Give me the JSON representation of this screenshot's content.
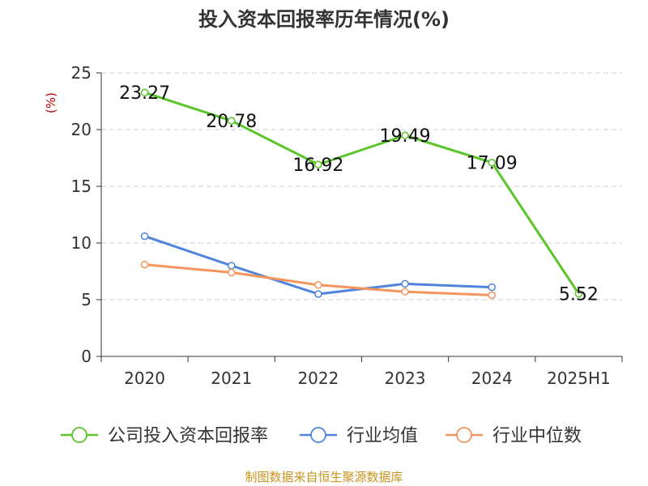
{
  "chart_data": {
    "type": "line",
    "title": "投入资本回报率历年情况(%)",
    "ylabel": "(%)",
    "xlabel": "",
    "categories": [
      "2020",
      "2021",
      "2022",
      "2023",
      "2024",
      "2025H1"
    ],
    "ylim": [
      0,
      25
    ],
    "yticks": [
      0,
      5,
      10,
      15,
      20,
      25
    ],
    "grid": "horizontal dashed",
    "legend_position": "bottom",
    "series": [
      {
        "name": "公司投入资本回报率",
        "color": "#5ac429",
        "values": [
          23.27,
          20.78,
          16.92,
          19.49,
          17.09,
          5.52
        ],
        "labels": [
          "23.27",
          "20.78",
          "16.92",
          "19.49",
          "17.09",
          "5.52"
        ]
      },
      {
        "name": "行业均值",
        "color": "#5083dc",
        "values": [
          10.6,
          8.0,
          5.5,
          6.4,
          6.1,
          null
        ]
      },
      {
        "name": "行业中位数",
        "color": "#f5945d",
        "values": [
          8.1,
          7.4,
          6.3,
          5.7,
          5.4,
          null
        ]
      }
    ],
    "source": "制图数据来自恒生聚源数据库"
  }
}
